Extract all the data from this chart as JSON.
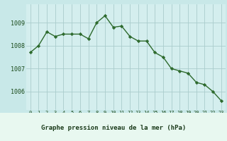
{
  "x": [
    0,
    1,
    2,
    3,
    4,
    5,
    6,
    7,
    8,
    9,
    10,
    11,
    12,
    13,
    14,
    15,
    16,
    17,
    18,
    19,
    20,
    21,
    22,
    23
  ],
  "y": [
    1007.7,
    1008.0,
    1008.6,
    1008.4,
    1008.5,
    1008.5,
    1008.5,
    1008.3,
    1009.0,
    1009.3,
    1008.8,
    1008.85,
    1008.4,
    1008.2,
    1008.2,
    1007.7,
    1007.5,
    1007.0,
    1006.9,
    1006.8,
    1006.4,
    1006.3,
    1006.0,
    1005.6
  ],
  "line_color": "#2d6a2d",
  "marker_color": "#2d6a2d",
  "bg_color": "#c8e8e8",
  "plot_bg_color": "#d4eeee",
  "grid_color": "#aacccc",
  "xlabel": "Graphe pression niveau de la mer (hPa)",
  "xlabel_color": "#1a3a1a",
  "xtick_labels": [
    "0",
    "1",
    "2",
    "3",
    "4",
    "5",
    "6",
    "7",
    "8",
    "9",
    "10",
    "11",
    "12",
    "13",
    "14",
    "15",
    "16",
    "17",
    "18",
    "19",
    "20",
    "21",
    "22",
    "23"
  ],
  "ytick_values": [
    1006,
    1007,
    1008,
    1009
  ],
  "ylim": [
    1005.2,
    1009.8
  ],
  "xlim": [
    -0.5,
    23.5
  ],
  "tick_color": "#1a4a1a",
  "bottom_label_bg": "#e8f8f0"
}
